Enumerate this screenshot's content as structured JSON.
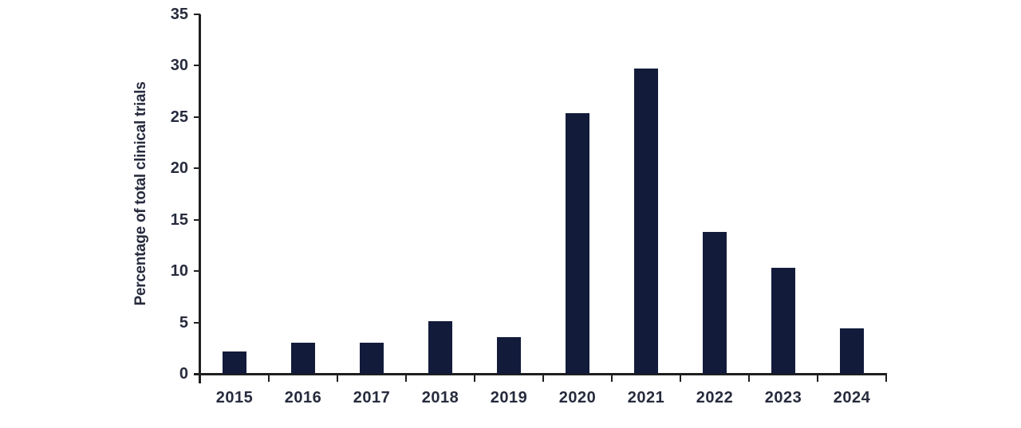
{
  "chart_data": {
    "type": "bar",
    "title": "",
    "categories": [
      "2015",
      "2016",
      "2017",
      "2018",
      "2019",
      "2020",
      "2021",
      "2022",
      "2023",
      "2024"
    ],
    "values": [
      2.2,
      3.0,
      3.0,
      5.1,
      3.6,
      25.4,
      29.7,
      13.8,
      10.3,
      4.4
    ],
    "xlabel": "",
    "ylabel": "Percentage of total clinical trials",
    "ylim": [
      0,
      35
    ],
    "yticks": [
      0,
      5,
      10,
      15,
      20,
      25,
      30,
      35
    ],
    "grid": false,
    "legend": false,
    "bar_color": "#121b3a",
    "axis_color": "#1f1f1f",
    "label_color": "#272b3d",
    "background": "#ffffff"
  }
}
